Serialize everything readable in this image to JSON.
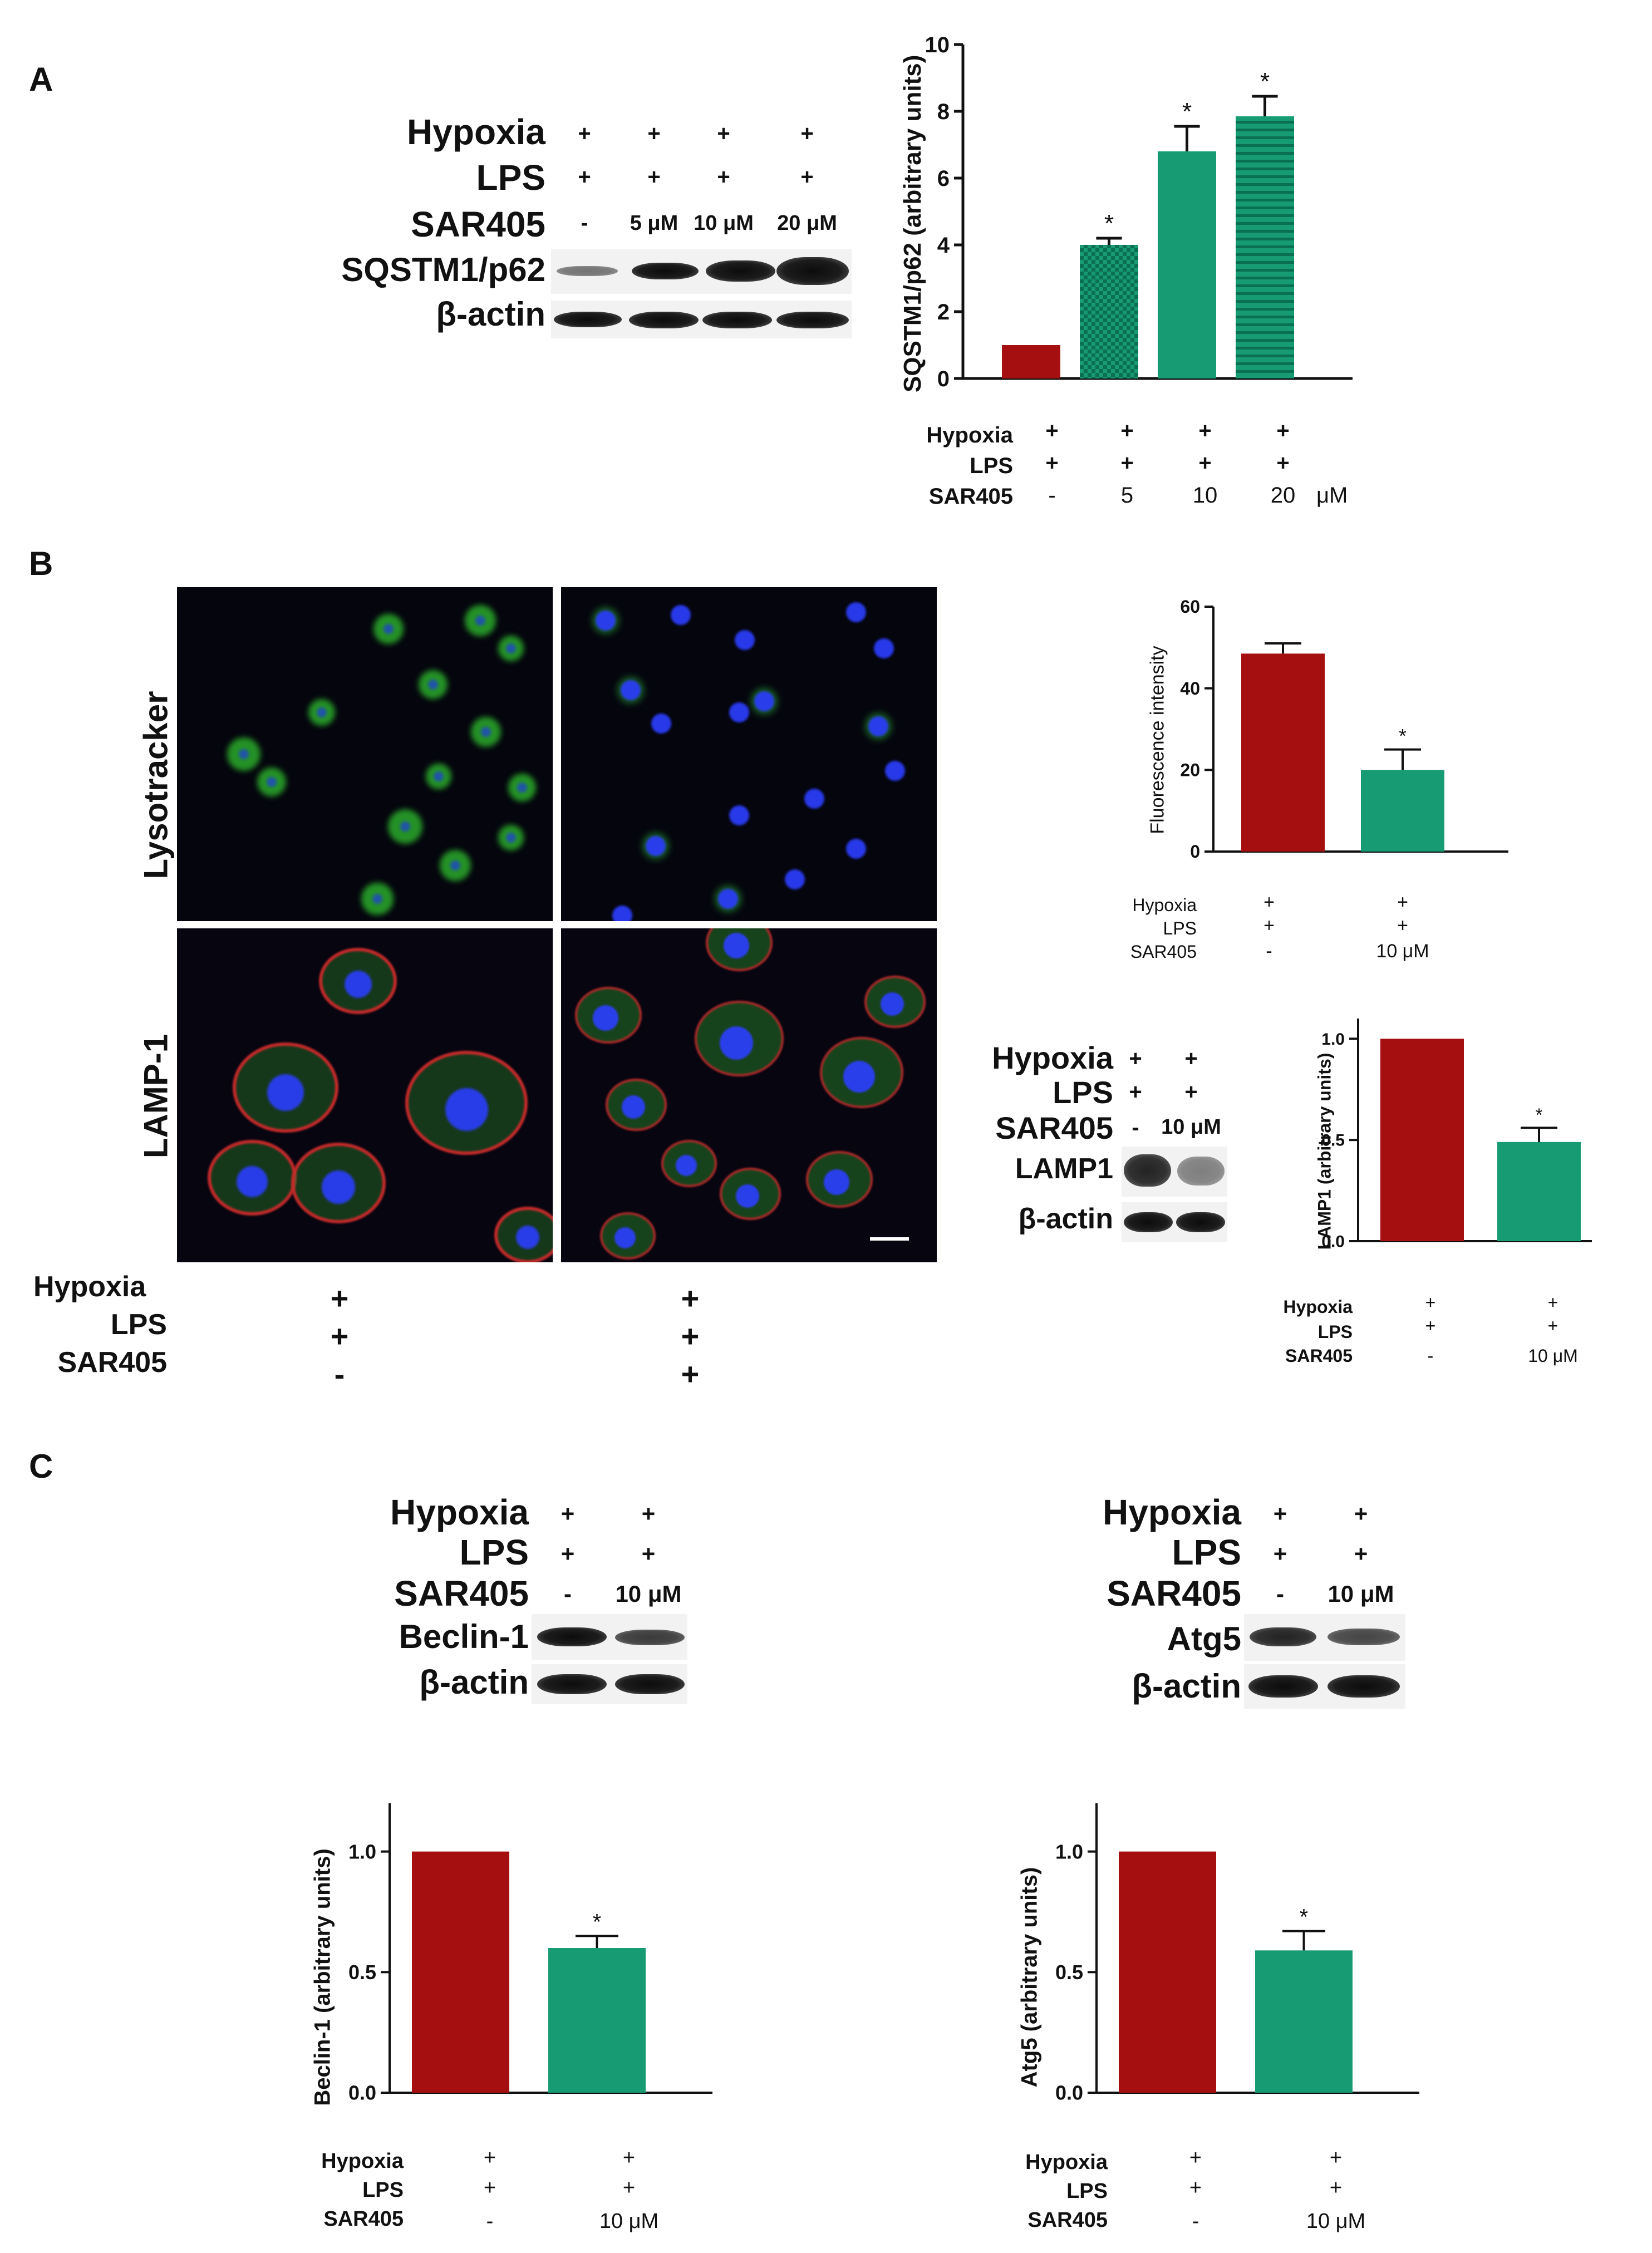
{
  "panels": {
    "a": "A",
    "b": "B",
    "c": "C"
  },
  "colors": {
    "control": "#a50f0f",
    "treated": "#169b73",
    "band": "#141414"
  },
  "panel_a": {
    "blot": {
      "rows": [
        "Hypoxia",
        "LPS",
        "SAR405"
      ],
      "columns": [
        {
          "hypoxia": "+",
          "lps": "+",
          "sar405": "-"
        },
        {
          "hypoxia": "+",
          "lps": "+",
          "sar405": "5 μM"
        },
        {
          "hypoxia": "+",
          "lps": "+",
          "sar405": "10 μM"
        },
        {
          "hypoxia": "+",
          "lps": "+",
          "sar405": "20 μM"
        }
      ],
      "proteins": [
        "SQSTM1/p62",
        "β-actin"
      ]
    },
    "table": {
      "rows": [
        "Hypoxia",
        "LPS",
        "SAR405"
      ],
      "hypoxia": [
        "+",
        "+",
        "+",
        "+"
      ],
      "lps": [
        "+",
        "+",
        "+",
        "+"
      ],
      "sar405": [
        "-",
        "5",
        "10",
        "20"
      ],
      "unit": "μM"
    }
  },
  "panel_b": {
    "micro_rows": [
      "Lysotracker",
      "LAMP-1"
    ],
    "micro_table": {
      "rows": [
        "Hypoxia",
        "LPS",
        "SAR405"
      ],
      "col1": [
        "+",
        "+",
        "-"
      ],
      "col2": [
        "+",
        "+",
        "+"
      ]
    },
    "fluor_table": {
      "rows": [
        "Hypoxia",
        "LPS",
        "SAR405"
      ],
      "col1": [
        "+",
        "+",
        "-"
      ],
      "col2": [
        "+",
        "+",
        "10 μM"
      ]
    },
    "blot": {
      "rows": [
        "Hypoxia",
        "LPS",
        "SAR405"
      ],
      "col1": [
        "+",
        "+",
        "-"
      ],
      "col2": [
        "+",
        "+",
        "10 μM"
      ],
      "proteins": [
        "LAMP1",
        "β-actin"
      ]
    },
    "lamp_table": {
      "rows": [
        "Hypoxia",
        "LPS",
        "SAR405"
      ],
      "col1": [
        "+",
        "+",
        "-"
      ],
      "col2": [
        "+",
        "+",
        "10 μM"
      ]
    }
  },
  "panel_c": {
    "blot_left": {
      "rows": [
        "Hypoxia",
        "LPS",
        "SAR405"
      ],
      "col1": [
        "+",
        "+",
        "-"
      ],
      "col2": [
        "+",
        "+",
        "10 μM"
      ],
      "proteins": [
        "Beclin-1",
        "β-actin"
      ]
    },
    "blot_right": {
      "rows": [
        "Hypoxia",
        "LPS",
        "SAR405"
      ],
      "col1": [
        "+",
        "+",
        "-"
      ],
      "col2": [
        "+",
        "+",
        "10 μM"
      ],
      "proteins": [
        "Atg5",
        "β-actin"
      ]
    },
    "beclin_table": {
      "rows": [
        "Hypoxia",
        "LPS",
        "SAR405"
      ],
      "col1": [
        "+",
        "+",
        "-"
      ],
      "col2": [
        "+",
        "+",
        "10 μM"
      ]
    },
    "atg5_table": {
      "rows": [
        "Hypoxia",
        "LPS",
        "SAR405"
      ],
      "col1": [
        "+",
        "+",
        "-"
      ],
      "col2": [
        "+",
        "+",
        "10 μM"
      ]
    }
  },
  "chart_data": [
    {
      "id": "p62",
      "type": "bar",
      "ylabel": "SQSTM1/p62 (arbitrary units)",
      "ylim": [
        0,
        10
      ],
      "yticks": [
        "0",
        "2",
        "4",
        "6",
        "8",
        "10"
      ],
      "values": [
        1.0,
        4.0,
        6.8,
        7.85
      ],
      "errors": [
        0,
        0.2,
        0.75,
        0.6
      ],
      "significance": [
        "",
        "*",
        "*",
        "*"
      ],
      "patterns": [
        "solid",
        "checker",
        "solid",
        "hstripe"
      ]
    },
    {
      "id": "fluor",
      "type": "bar",
      "ylabel": "Fluorescence intensity",
      "ylim": [
        0,
        60
      ],
      "yticks": [
        "0",
        "20",
        "40",
        "60"
      ],
      "values": [
        48.5,
        20.0
      ],
      "errors": [
        2.5,
        5.0
      ],
      "significance": [
        "",
        "*"
      ]
    },
    {
      "id": "lamp1",
      "type": "bar",
      "ylabel": "LAMP1 (arbitrary units)",
      "ylim": [
        0,
        1.1
      ],
      "yticks": [
        "0.0",
        "0.5",
        "1.0"
      ],
      "values": [
        1.0,
        0.49
      ],
      "errors": [
        0,
        0.07
      ],
      "significance": [
        "",
        "*"
      ]
    },
    {
      "id": "beclin",
      "type": "bar",
      "ylabel": "Beclin-1 (arbitrary units)",
      "ylim": [
        0,
        1.2
      ],
      "yticks": [
        "0.0",
        "0.5",
        "1.0"
      ],
      "values": [
        1.0,
        0.6
      ],
      "errors": [
        0,
        0.05
      ],
      "significance": [
        "",
        "*"
      ]
    },
    {
      "id": "atg5",
      "type": "bar",
      "ylabel": "Atg5 (arbitrary units)",
      "ylim": [
        0,
        1.2
      ],
      "yticks": [
        "0.0",
        "0.5",
        "1.0"
      ],
      "values": [
        1.0,
        0.59
      ],
      "errors": [
        0,
        0.08
      ],
      "significance": [
        "",
        "*"
      ]
    }
  ]
}
